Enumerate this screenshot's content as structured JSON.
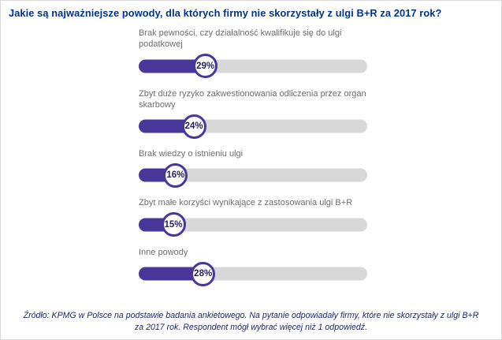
{
  "title": "Jakie są najważniejsze powody, dla których firmy nie skorzystały z ulgi B+R za 2017 rok?",
  "chart_data": {
    "type": "bar",
    "orientation": "horizontal",
    "unit": "%",
    "categories": [
      "Brak pewności, czy działalność kwalifikuje się do ulgi podatkowej",
      "Zbyt duże ryzyko zakwestionowania odliczenia przez organ skarbowy",
      "Brak wiedzy o istnieniu ulgi",
      "Zbyt małe korzyści wynikające z zastosowania ulgi B+R",
      "Inne powody"
    ],
    "values": [
      29,
      24,
      16,
      15,
      28
    ],
    "xlim": [
      0,
      100
    ],
    "colors": {
      "bar_fill": "#483698",
      "bar_track": "#d8d8d8",
      "title": "#00338d",
      "label": "#6d6e71",
      "value_text": "#231f5c"
    },
    "legend": "none",
    "grid": false
  },
  "source": "Źródło: KPMG w Polsce na podstawie badania ankietowego. Na pytanie odpowiadały firmy, które nie skorzystały z ulgi B+R za 2017 rok. Respondent mógł wybrać więcej niż 1 odpowiedź."
}
